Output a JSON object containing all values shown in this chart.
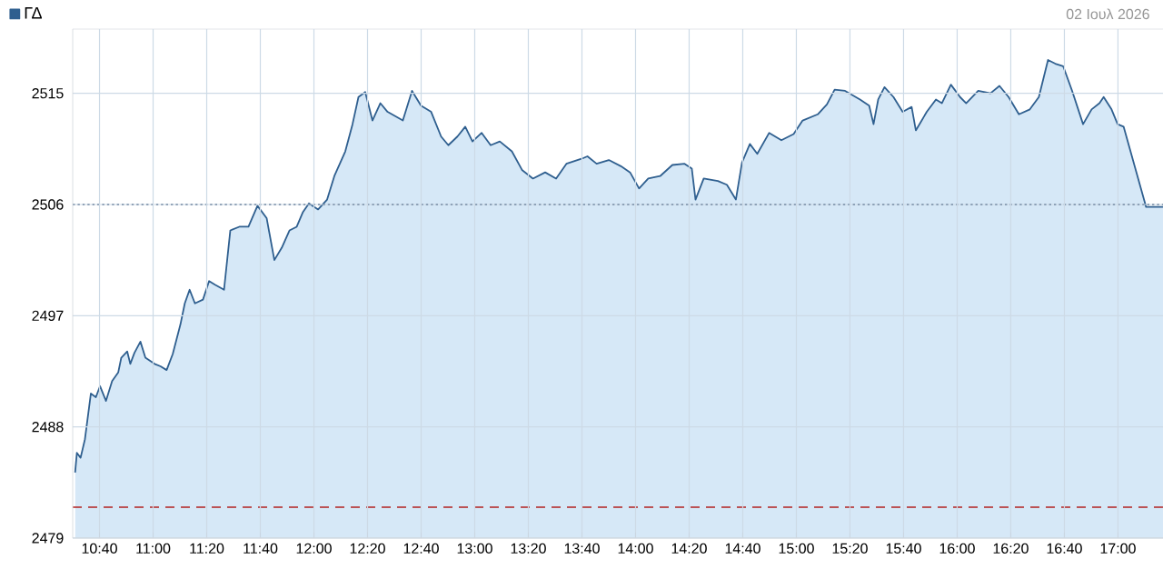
{
  "chart_data": {
    "type": "area",
    "subtitle": "02 Ιουλ 2026",
    "x": [
      10.515,
      10.526,
      10.549,
      10.576,
      10.613,
      10.644,
      10.67,
      10.707,
      10.745,
      10.783,
      10.802,
      10.839,
      10.858,
      10.884,
      10.921,
      10.952,
      11.009,
      11.046,
      11.084,
      11.122,
      11.17,
      11.197,
      11.227,
      11.26,
      11.31,
      11.348,
      11.385,
      11.441,
      11.48,
      11.536,
      11.593,
      11.649,
      11.706,
      11.754,
      11.8,
      11.848,
      11.893,
      11.932,
      11.969,
      12.026,
      12.082,
      12.127,
      12.195,
      12.24,
      12.277,
      12.319,
      12.364,
      12.413,
      12.458,
      12.553,
      12.61,
      12.666,
      12.729,
      12.791,
      12.836,
      12.892,
      12.941,
      12.986,
      13.043,
      13.099,
      13.156,
      13.231,
      13.294,
      13.362,
      13.438,
      13.506,
      13.57,
      13.664,
      13.701,
      13.758,
      13.834,
      13.909,
      13.966,
      14.022,
      14.079,
      14.153,
      14.229,
      14.305,
      14.35,
      14.373,
      14.424,
      14.512,
      14.568,
      14.624,
      14.662,
      14.711,
      14.757,
      14.831,
      14.907,
      14.983,
      15.039,
      15.133,
      15.19,
      15.238,
      15.303,
      15.396,
      15.453,
      15.48,
      15.509,
      15.548,
      15.604,
      15.661,
      15.717,
      15.743,
      15.811,
      15.868,
      15.905,
      15.961,
      16.018,
      16.056,
      16.131,
      16.207,
      16.263,
      16.32,
      16.384,
      16.452,
      16.508,
      16.565,
      16.61,
      16.659,
      16.715,
      16.783,
      16.836,
      16.885,
      16.911,
      16.96,
      16.998,
      17.035,
      17.175,
      17.28
    ],
    "series": [
      {
        "name": "ΓΔ",
        "color": "#2f5f8f",
        "values": [
          2484.3,
          2485.9,
          2485.5,
          2487.0,
          2490.7,
          2490.4,
          2491.3,
          2490.1,
          2491.7,
          2492.4,
          2493.6,
          2494.1,
          2493.1,
          2494.0,
          2494.9,
          2493.6,
          2493.1,
          2492.9,
          2492.6,
          2493.9,
          2496.3,
          2498.0,
          2499.1,
          2498.0,
          2498.3,
          2499.8,
          2499.5,
          2499.1,
          2503.9,
          2504.2,
          2504.2,
          2505.9,
          2504.9,
          2501.5,
          2502.5,
          2503.9,
          2504.2,
          2505.4,
          2506.1,
          2505.6,
          2506.4,
          2508.3,
          2510.3,
          2512.5,
          2514.7,
          2515.1,
          2512.8,
          2514.2,
          2513.5,
          2512.8,
          2515.2,
          2514.0,
          2513.5,
          2511.5,
          2510.8,
          2511.5,
          2512.3,
          2511.1,
          2511.8,
          2510.8,
          2511.1,
          2510.3,
          2508.8,
          2508.1,
          2508.6,
          2508.1,
          2509.3,
          2509.7,
          2509.9,
          2509.3,
          2509.6,
          2509.1,
          2508.6,
          2507.3,
          2508.1,
          2508.3,
          2509.2,
          2509.3,
          2508.9,
          2506.4,
          2508.1,
          2507.9,
          2507.6,
          2506.4,
          2509.4,
          2510.9,
          2510.1,
          2511.8,
          2511.2,
          2511.7,
          2512.8,
          2513.3,
          2514.1,
          2515.3,
          2515.2,
          2514.5,
          2514.0,
          2512.5,
          2514.5,
          2515.5,
          2514.7,
          2513.5,
          2513.9,
          2512.0,
          2513.5,
          2514.5,
          2514.2,
          2515.7,
          2514.7,
          2514.2,
          2515.2,
          2515.0,
          2515.6,
          2514.7,
          2513.3,
          2513.7,
          2514.7,
          2517.7,
          2517.4,
          2517.2,
          2515.2,
          2512.5,
          2513.7,
          2514.2,
          2514.7,
          2513.7,
          2512.5,
          2512.3,
          2505.8,
          2505.8
        ]
      }
    ],
    "xlim": [
      10.5,
      17.28
    ],
    "xticks": [
      {
        "value": 10.6667,
        "label": "10:40"
      },
      {
        "value": 11,
        "label": "11:00"
      },
      {
        "value": 11.3333,
        "label": "11:20"
      },
      {
        "value": 11.6667,
        "label": "11:40"
      },
      {
        "value": 12,
        "label": "12:00"
      },
      {
        "value": 12.3333,
        "label": "12:20"
      },
      {
        "value": 12.6667,
        "label": "12:40"
      },
      {
        "value": 13,
        "label": "13:00"
      },
      {
        "value": 13.3333,
        "label": "13:20"
      },
      {
        "value": 13.6667,
        "label": "13:40"
      },
      {
        "value": 14,
        "label": "14:00"
      },
      {
        "value": 14.3333,
        "label": "14:20"
      },
      {
        "value": 14.6667,
        "label": "14:40"
      },
      {
        "value": 15,
        "label": "15:00"
      },
      {
        "value": 15.3333,
        "label": "15:20"
      },
      {
        "value": 15.6667,
        "label": "15:40"
      },
      {
        "value": 16,
        "label": "16:00"
      },
      {
        "value": 16.3333,
        "label": "16:20"
      },
      {
        "value": 16.6667,
        "label": "16:40"
      },
      {
        "value": 17,
        "label": "17:00"
      }
    ],
    "ylim": [
      2479,
      2520.2
    ],
    "yticks": [
      2479,
      2488,
      2497,
      2506,
      2515
    ],
    "ref_lines": [
      {
        "axis": "y",
        "value": 2506,
        "color": "#1f3f66",
        "line_style": "dotted"
      },
      {
        "axis": "y",
        "value": 2481.5,
        "color": "#b22222",
        "line_style": "dashed"
      }
    ],
    "grid": true,
    "legend": "top left"
  }
}
